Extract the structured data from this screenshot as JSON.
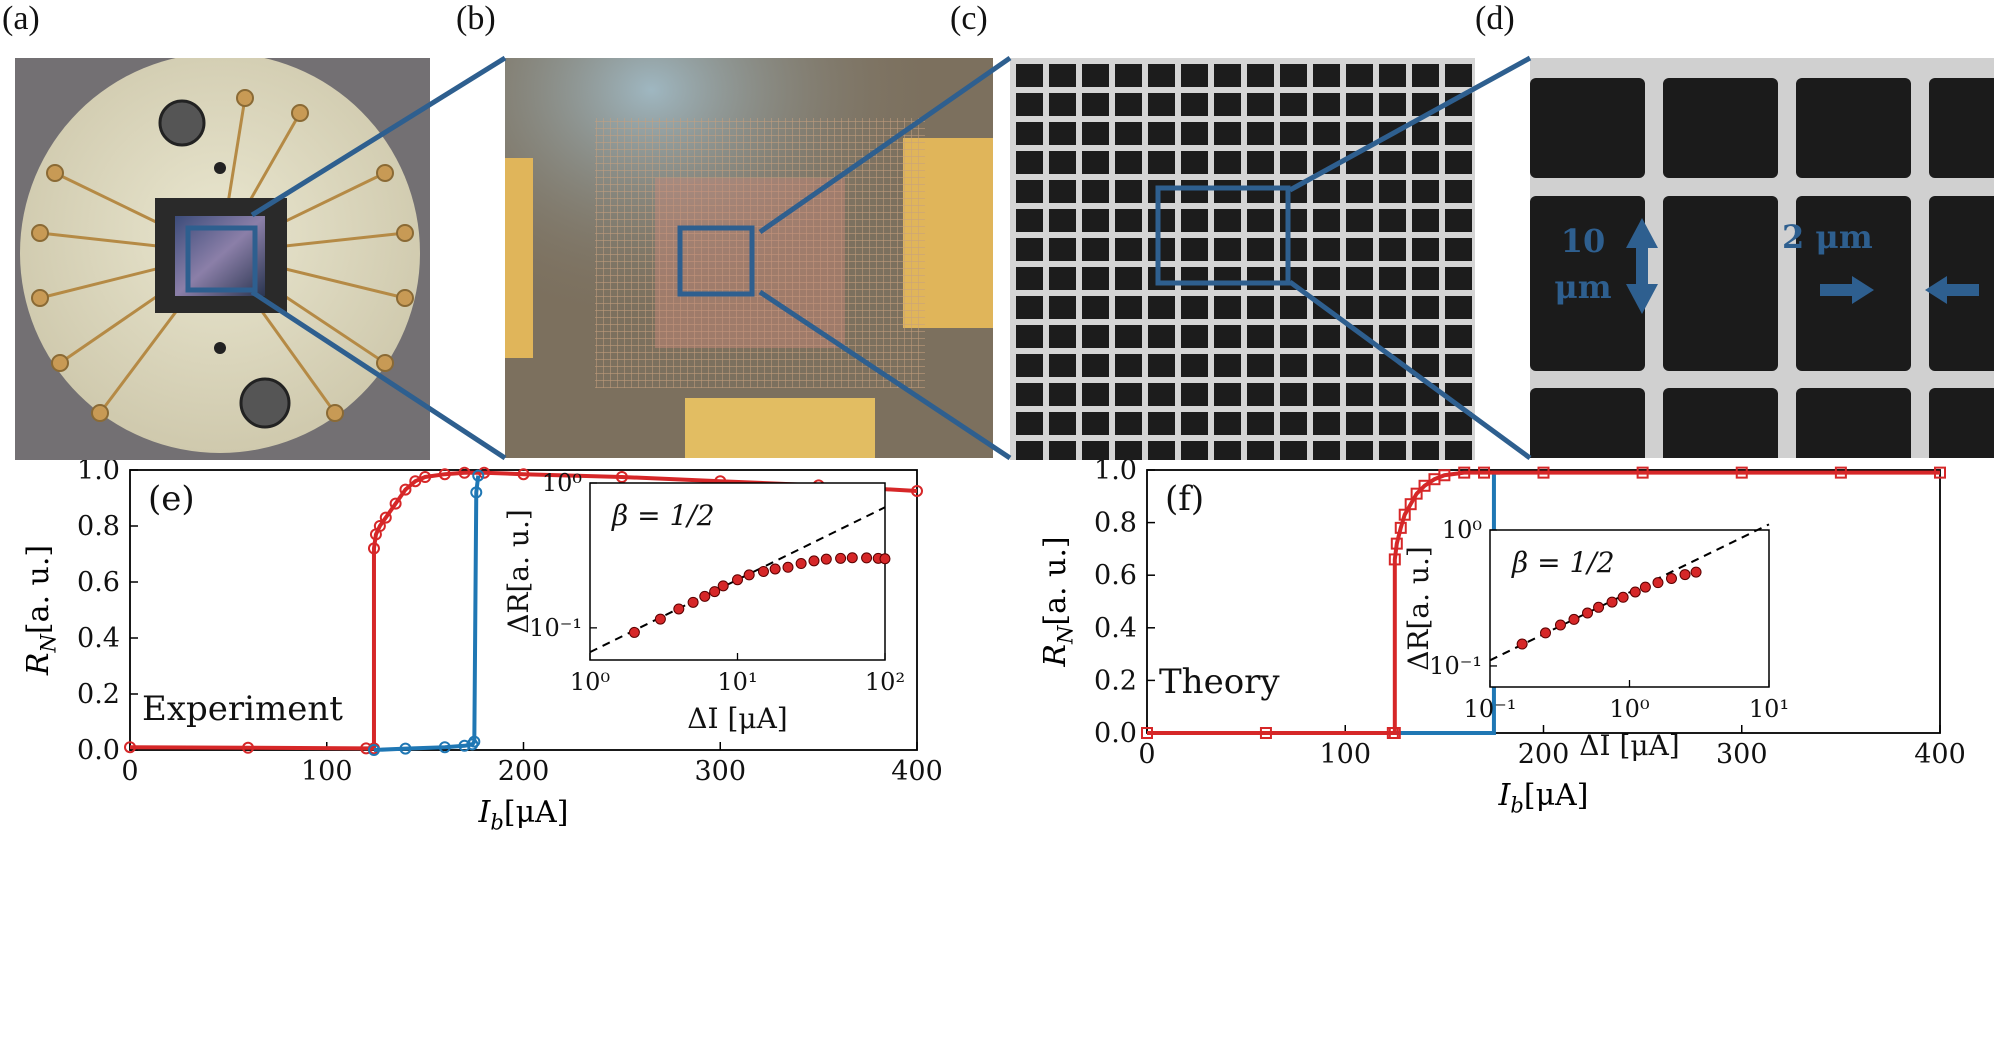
{
  "panel_labels": [
    "(a)",
    "(b)",
    "(c)",
    "(d)",
    "(e)",
    "(f)"
  ],
  "sem_annotations": {
    "height": "10 μm",
    "width": "2 μm"
  },
  "chart_data": [
    {
      "type": "line",
      "panel": "(e)",
      "annotation": "Experiment",
      "xlabel": "I_b[μA]",
      "ylabel": "R_N[a. u.]",
      "xlim": [
        0,
        400
      ],
      "ylim": [
        0,
        1.0
      ],
      "xticks": [
        "0",
        "100",
        "200",
        "300",
        "400"
      ],
      "yticks": [
        "0.0",
        "0.2",
        "0.4",
        "0.6",
        "0.8",
        "1.0"
      ],
      "series": [
        {
          "color": "#d62728",
          "marker": "circle",
          "x": [
            0,
            60,
            120,
            124,
            124,
            125,
            127,
            130,
            135,
            140,
            145,
            150,
            160,
            170,
            180,
            200,
            250,
            300,
            350,
            400
          ],
          "y": [
            0.01,
            0.008,
            0.006,
            0.006,
            0.72,
            0.77,
            0.8,
            0.83,
            0.88,
            0.93,
            0.96,
            0.975,
            0.985,
            0.99,
            0.99,
            0.985,
            0.975,
            0.96,
            0.945,
            0.925
          ]
        },
        {
          "color": "#1f77b4",
          "marker": "circle",
          "x": [
            124,
            140,
            160,
            170,
            174,
            175,
            176,
            177
          ],
          "y": [
            0.0,
            0.005,
            0.01,
            0.015,
            0.02,
            0.03,
            0.92,
            0.98
          ]
        }
      ],
      "inset": {
        "type": "scatter",
        "annotation": "β = 1/2",
        "xlabel": "ΔI [μA]",
        "ylabel": "ΔR[a. u.]",
        "xscale": "log",
        "yscale": "log",
        "xlim": [
          1,
          100
        ],
        "ylim": [
          0.06,
          1
        ],
        "xticks": [
          1,
          10,
          100
        ],
        "xticklabels": [
          "10⁰",
          "10¹",
          "10²"
        ],
        "yticks": [
          0.1,
          1
        ],
        "yticklabels": [
          "10⁻¹",
          "10⁰"
        ],
        "fit_line": {
          "style": "dashed",
          "color": "#000000",
          "x": [
            1,
            100
          ],
          "y": [
            0.068,
            0.68
          ]
        },
        "points": {
          "color": "#d62728",
          "x": [
            2,
            3,
            4,
            5,
            6,
            7,
            8,
            10,
            12,
            15,
            18,
            22,
            27,
            33,
            40,
            50,
            60,
            75,
            90,
            100
          ],
          "y": [
            0.093,
            0.115,
            0.135,
            0.15,
            0.165,
            0.178,
            0.195,
            0.215,
            0.232,
            0.245,
            0.255,
            0.262,
            0.278,
            0.29,
            0.298,
            0.302,
            0.305,
            0.304,
            0.302,
            0.3
          ]
        }
      }
    },
    {
      "type": "line",
      "panel": "(f)",
      "annotation": "Theory",
      "xlabel": "I_b[μA]",
      "ylabel": "R_N[a. u.]",
      "xlim": [
        0,
        400
      ],
      "ylim": [
        0,
        1.0
      ],
      "xticks": [
        "0",
        "100",
        "200",
        "300",
        "400"
      ],
      "yticks": [
        "0.0",
        "0.2",
        "0.4",
        "0.6",
        "0.8",
        "1.0"
      ],
      "series": [
        {
          "color": "#1f77b4",
          "marker": "none",
          "x": [
            125,
            150,
            174,
            175,
            175,
            178
          ],
          "y": [
            0.0,
            0.0,
            0.0,
            0.0,
            0.99,
            0.99
          ]
        },
        {
          "color": "#d62728",
          "marker": "square",
          "x": [
            0,
            60,
            124,
            125,
            125,
            126,
            128,
            130,
            133,
            136,
            140,
            145,
            150,
            160,
            170,
            200,
            250,
            300,
            350,
            400
          ],
          "y": [
            0.0,
            0.0,
            0.0,
            0.0,
            0.66,
            0.72,
            0.78,
            0.83,
            0.87,
            0.91,
            0.94,
            0.965,
            0.98,
            0.99,
            0.99,
            0.99,
            0.99,
            0.99,
            0.99,
            0.99
          ]
        }
      ],
      "inset": {
        "type": "scatter",
        "annotation": "β = 1/2",
        "xlabel": "ΔI [μA]",
        "ylabel": "ΔR[a. u.]",
        "xscale": "log",
        "yscale": "log",
        "xlim": [
          0.1,
          10
        ],
        "ylim": [
          0.07,
          1
        ],
        "xticks": [
          0.1,
          1,
          10
        ],
        "xticklabels": [
          "10⁻¹",
          "10⁰",
          "10¹"
        ],
        "yticks": [
          0.1,
          1
        ],
        "yticklabels": [
          "10⁻¹",
          "10⁰"
        ],
        "fit_line": {
          "style": "dashed",
          "color": "#000000",
          "x": [
            0.1,
            10
          ],
          "y": [
            0.11,
            1.1
          ]
        },
        "points": {
          "color": "#d62728",
          "x": [
            0.17,
            0.25,
            0.32,
            0.4,
            0.5,
            0.6,
            0.75,
            0.9,
            1.1,
            1.3,
            1.6,
            2.0,
            2.5,
            3.0
          ],
          "y": [
            0.145,
            0.175,
            0.2,
            0.22,
            0.245,
            0.27,
            0.295,
            0.32,
            0.35,
            0.38,
            0.41,
            0.44,
            0.47,
            0.49
          ]
        }
      }
    }
  ]
}
